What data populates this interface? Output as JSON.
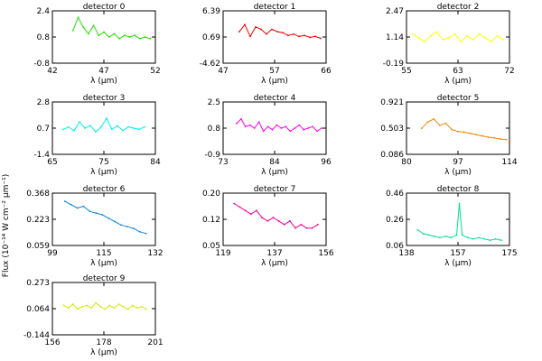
{
  "figure": {
    "shared_ylabel": "Flux (10⁻¹⁴ W cm⁻² μm⁻¹)"
  },
  "chart_data": [
    {
      "type": "line",
      "title": "detector 0",
      "xlabel": "λ (μm)",
      "xlim": [
        42,
        52
      ],
      "ylim": [
        -0.8,
        2.4
      ],
      "xticks": [
        "42",
        "47",
        "52"
      ],
      "yticks": [
        "-0.8",
        "0.8",
        "2.4"
      ],
      "color": "#22dd00",
      "x": [
        44.0,
        44.5,
        45.0,
        45.5,
        46.0,
        46.5,
        47.0,
        47.5,
        48.0,
        48.5,
        49.0,
        49.5,
        50.0,
        50.5,
        51.0,
        51.5
      ],
      "y": [
        1.2,
        2.0,
        1.4,
        1.0,
        1.5,
        0.9,
        1.1,
        0.8,
        1.0,
        0.7,
        0.9,
        0.8,
        0.9,
        0.7,
        0.8,
        0.7
      ]
    },
    {
      "type": "line",
      "title": "detector 1",
      "xlabel": "λ (μm)",
      "xlim": [
        47,
        66
      ],
      "ylim": [
        -4.62,
        6.39
      ],
      "xticks": [
        "47",
        "57",
        "66"
      ],
      "yticks": [
        "-4.62",
        "0.69",
        "6.39"
      ],
      "color": "#ee0000",
      "x": [
        50,
        51,
        52,
        53,
        54,
        55,
        56,
        57,
        58,
        59,
        60,
        61,
        62,
        63,
        64,
        65
      ],
      "y": [
        2.0,
        3.5,
        1.0,
        3.0,
        2.5,
        1.5,
        2.5,
        2.0,
        1.8,
        1.2,
        1.5,
        1.0,
        1.2,
        0.8,
        1.0,
        0.6
      ]
    },
    {
      "type": "line",
      "title": "detector 2",
      "xlabel": "λ (μm)",
      "xlim": [
        55,
        72
      ],
      "ylim": [
        -0.19,
        2.47
      ],
      "xticks": [
        "55",
        "63",
        "72"
      ],
      "yticks": [
        "-0.19",
        "1.14",
        "2.47"
      ],
      "color": "#ffff00",
      "x": [
        56,
        57,
        58,
        59,
        60,
        61,
        62,
        63,
        64,
        65,
        66,
        67,
        68,
        69,
        70,
        71
      ],
      "y": [
        1.3,
        1.1,
        0.9,
        1.2,
        1.4,
        1.0,
        1.1,
        1.3,
        0.9,
        1.2,
        1.0,
        1.3,
        1.1,
        0.9,
        1.2,
        1.0
      ]
    },
    {
      "type": "line",
      "title": "detector 3",
      "xlabel": "λ (μm)",
      "xlim": [
        65,
        84
      ],
      "ylim": [
        -1.4,
        2.8
      ],
      "xticks": [
        "65",
        "75",
        "84"
      ],
      "yticks": [
        "-1.4",
        "0.7",
        "2.8"
      ],
      "color": "#00eeee",
      "x": [
        67,
        68,
        69,
        70,
        71,
        72,
        73,
        74,
        75,
        76,
        77,
        78,
        79,
        80,
        81,
        82
      ],
      "y": [
        0.6,
        0.8,
        0.5,
        1.2,
        0.7,
        0.9,
        0.4,
        0.8,
        1.5,
        0.6,
        0.9,
        0.5,
        0.8,
        0.7,
        0.6,
        0.8
      ]
    },
    {
      "type": "line",
      "title": "detector 4",
      "xlabel": "λ (μm)",
      "xlim": [
        73,
        96
      ],
      "ylim": [
        -0.9,
        2.5
      ],
      "xticks": [
        "73",
        "84",
        "96"
      ],
      "yticks": [
        "-0.9",
        "0.8",
        "2.5"
      ],
      "color": "#ff00ee",
      "x": [
        76,
        77,
        78,
        79,
        80,
        81,
        82,
        83,
        84,
        85,
        86,
        87,
        88,
        89,
        90,
        91,
        92,
        93,
        94,
        95
      ],
      "y": [
        1.1,
        1.4,
        0.9,
        1.0,
        0.8,
        1.2,
        0.6,
        0.9,
        0.7,
        1.0,
        0.8,
        0.9,
        0.6,
        0.8,
        1.0,
        0.7,
        0.8,
        0.9,
        0.6,
        0.8
      ]
    },
    {
      "type": "line",
      "title": "detector 5",
      "xlabel": "λ (μm)",
      "xlim": [
        80,
        114
      ],
      "ylim": [
        0.086,
        0.921
      ],
      "xticks": [
        "80",
        "97",
        "114"
      ],
      "yticks": [
        "0.086",
        "0.503",
        "0.921"
      ],
      "color": "#ee8800",
      "x": [
        85,
        87,
        89,
        91,
        93,
        95,
        97,
        99,
        101,
        103,
        105,
        107,
        109,
        111,
        113
      ],
      "y": [
        0.5,
        0.6,
        0.65,
        0.55,
        0.58,
        0.48,
        0.45,
        0.44,
        0.42,
        0.4,
        0.38,
        0.36,
        0.35,
        0.33,
        0.32
      ]
    },
    {
      "type": "line",
      "title": "detector 6",
      "xlabel": "λ (μm)",
      "xlim": [
        99,
        132
      ],
      "ylim": [
        0.059,
        0.368
      ],
      "xticks": [
        "99",
        "115",
        "132"
      ],
      "yticks": [
        "0.059",
        "0.223",
        "0.368"
      ],
      "color": "#1188dd",
      "x": [
        103,
        105,
        107,
        109,
        111,
        113,
        115,
        117,
        119,
        121,
        123,
        125,
        127,
        129
      ],
      "y": [
        0.32,
        0.3,
        0.28,
        0.29,
        0.26,
        0.25,
        0.24,
        0.22,
        0.2,
        0.18,
        0.17,
        0.16,
        0.14,
        0.13
      ]
    },
    {
      "type": "line",
      "title": "detector 7",
      "xlabel": "λ (μm)",
      "xlim": [
        119,
        156
      ],
      "ylim": [
        0.05,
        0.2
      ],
      "xticks": [
        "119",
        "137",
        "156"
      ],
      "yticks": [
        "0.05",
        "0.12",
        "0.20"
      ],
      "color": "#ee0099",
      "x": [
        123,
        125,
        127,
        129,
        131,
        133,
        135,
        137,
        139,
        141,
        143,
        145,
        147,
        149,
        151,
        153
      ],
      "y": [
        0.17,
        0.16,
        0.15,
        0.14,
        0.15,
        0.13,
        0.12,
        0.13,
        0.12,
        0.11,
        0.12,
        0.1,
        0.11,
        0.1,
        0.1,
        0.11
      ]
    },
    {
      "type": "line",
      "title": "detector 8",
      "xlabel": "λ (μm)",
      "xlim": [
        138,
        175
      ],
      "ylim": [
        0.06,
        0.46
      ],
      "xticks": [
        "138",
        "157",
        "175"
      ],
      "yticks": [
        "0.06",
        "0.26",
        "0.46"
      ],
      "color": "#00dd99",
      "x": [
        142,
        144,
        146,
        148,
        150,
        152,
        154,
        156,
        157,
        158,
        160,
        162,
        164,
        166,
        168,
        170,
        172
      ],
      "y": [
        0.18,
        0.15,
        0.14,
        0.13,
        0.12,
        0.13,
        0.12,
        0.14,
        0.38,
        0.14,
        0.12,
        0.11,
        0.12,
        0.11,
        0.1,
        0.11,
        0.1
      ]
    },
    {
      "type": "line",
      "title": "detector 9",
      "xlabel": "λ (μm)",
      "xlim": [
        156,
        201
      ],
      "ylim": [
        -0.144,
        0.273
      ],
      "xticks": [
        "156",
        "178",
        "201"
      ],
      "yticks": [
        "-0.144",
        "0.064",
        "0.273"
      ],
      "color": "#ccee00",
      "x": [
        161,
        163,
        165,
        167,
        169,
        171,
        173,
        175,
        177,
        179,
        181,
        183,
        185,
        187,
        189,
        191,
        193,
        195,
        197
      ],
      "y": [
        0.09,
        0.07,
        0.1,
        0.06,
        0.08,
        0.09,
        0.07,
        0.11,
        0.08,
        0.06,
        0.09,
        0.07,
        0.1,
        0.08,
        0.06,
        0.09,
        0.07,
        0.08,
        0.06
      ]
    }
  ]
}
